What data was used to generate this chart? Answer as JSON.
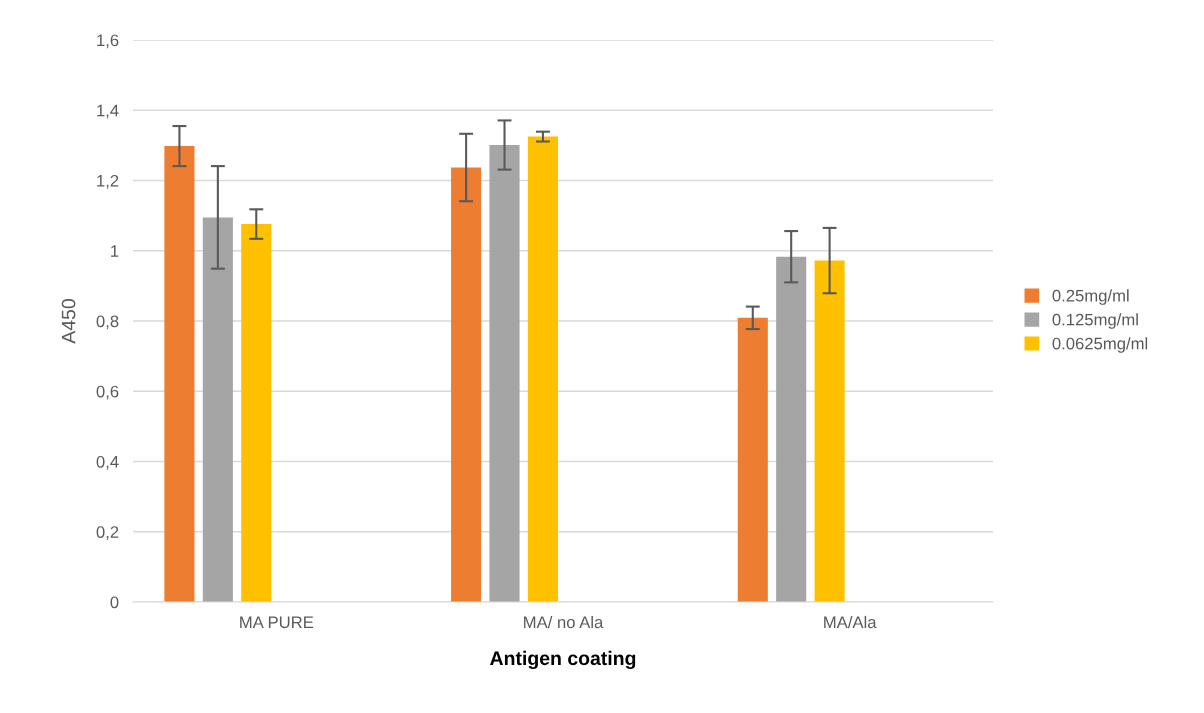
{
  "chart_data": {
    "type": "bar",
    "xlabel": "Antigen coating",
    "ylabel": "A450",
    "categories": [
      "MA PURE",
      "MA/ no Ala",
      "MA/Ala"
    ],
    "series": [
      {
        "name": "0.25mg/ml",
        "color": "#ed7d31",
        "values": [
          1.298,
          1.237,
          0.809
        ],
        "errors": [
          0.057,
          0.096,
          0.032
        ]
      },
      {
        "name": "0.125mg/ml",
        "color": "#a5a5a5",
        "values": [
          1.095,
          1.301,
          0.983
        ],
        "errors": [
          0.146,
          0.07,
          0.073
        ]
      },
      {
        "name": "0.0625mg/ml",
        "color": "#ffc000",
        "values": [
          1.076,
          1.325,
          0.972
        ],
        "errors": [
          0.042,
          0.014,
          0.093
        ]
      }
    ],
    "ylim": [
      0,
      1.6
    ],
    "yticks": [
      0,
      {
        "value": 0.2,
        "label": "0,2"
      },
      {
        "value": 0.4,
        "label": "0,4"
      },
      {
        "value": 0.6,
        "label": "0,6"
      },
      {
        "value": 0.8,
        "label": "0,8"
      },
      1,
      {
        "value": 1.2,
        "label": "1,2"
      },
      {
        "value": 1.4,
        "label": "1,4"
      },
      {
        "value": 1.6,
        "label": "1,6"
      }
    ],
    "grid": "y",
    "legend": "right"
  }
}
